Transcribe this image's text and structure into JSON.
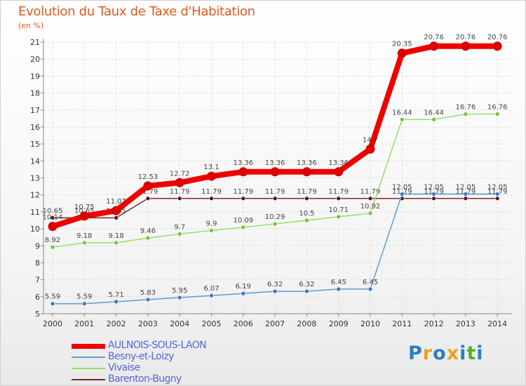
{
  "title": "Evolution du Taux de Taxe d'Habitation",
  "unit": "(en %)",
  "logo": {
    "letters": [
      "P",
      "r",
      "o",
      "x",
      "i",
      "t",
      "i"
    ],
    "colors": [
      "#2a7fc2",
      "#e8a21b",
      "#2a7fc2",
      "#e8a21b",
      "#2a7fc2",
      "#5aae2a",
      "#2a7fc2"
    ]
  },
  "chart_data": {
    "type": "line",
    "x": [
      "2000",
      "2001",
      "2002",
      "2003",
      "2004",
      "2005",
      "2006",
      "2007",
      "2008",
      "2009",
      "2010",
      "2011",
      "2012",
      "2013",
      "2014"
    ],
    "ylim": [
      5,
      21
    ],
    "yticks": [
      "5",
      "6",
      "7",
      "8",
      "9",
      "10",
      "11",
      "12",
      "13",
      "14",
      "15",
      "16",
      "17",
      "18",
      "19",
      "20",
      "21"
    ],
    "grid": true,
    "legend_position": "bottom-left",
    "series": [
      {
        "name": "Barenton-Bugny",
        "color": "#7a2a2a",
        "point": "#5a1a1a",
        "values": [
          10.65,
          10.65,
          10.65,
          11.79,
          11.79,
          11.79,
          11.79,
          11.79,
          11.79,
          11.79,
          11.79,
          11.79,
          11.79,
          11.79,
          11.79
        ],
        "labels": [
          "10.65",
          "10.65",
          "10.65",
          "11.79",
          "11.79",
          "11.79",
          "11.79",
          "11.79",
          "11.79",
          "11.79",
          "11.79",
          "11.79",
          "11.79",
          "11.79",
          "11.79"
        ]
      },
      {
        "name": "Besny-et-Loizy",
        "color": "#5b9bd5",
        "point": "#3a7dbf",
        "values": [
          5.59,
          5.59,
          5.71,
          5.83,
          5.95,
          6.07,
          6.19,
          6.32,
          6.32,
          6.45,
          6.45,
          12.05,
          12.05,
          12.05,
          12.05
        ],
        "labels": [
          "5.59",
          "5.59",
          "5.71",
          "5.83",
          "5.95",
          "6.07",
          "6.19",
          "6.32",
          "6.32",
          "6.45",
          "6.45",
          "12.05",
          "12.05",
          "12.05",
          "12.05"
        ]
      },
      {
        "name": "Vivaise",
        "color": "#99dd66",
        "point": "#7cc142",
        "values": [
          8.92,
          9.18,
          9.18,
          9.46,
          9.7,
          9.9,
          10.09,
          10.29,
          10.5,
          10.71,
          10.92,
          16.44,
          16.44,
          16.76,
          16.76
        ],
        "labels": [
          "8.92",
          "9.18",
          "9.18",
          "9.46",
          "9.7",
          "9.9",
          "10.09",
          "10.29",
          "10.5",
          "10.71",
          "10.92",
          "16.44",
          "16.44",
          "16.76",
          "16.76"
        ]
      },
      {
        "name": "AULNOIS-SOUS-LAON",
        "color": "#ee0000",
        "point": "#dd0000",
        "values": [
          10.14,
          10.75,
          11.07,
          12.53,
          12.72,
          13.1,
          13.36,
          13.36,
          13.36,
          13.36,
          14.7,
          20.35,
          20.76,
          20.76,
          20.76
        ],
        "labels": [
          "10.14",
          "10.75",
          "11.07",
          "12.53",
          "12.72",
          "13.1",
          "13.36",
          "13.36",
          "13.36",
          "13.36",
          "14.7",
          "20.35",
          "20.76",
          "20.76",
          "20.76"
        ]
      }
    ]
  },
  "legend": [
    {
      "name": "AULNOIS-SOUS-LAON",
      "color": "#ee0000",
      "text_color": "#5566dd"
    },
    {
      "name": "Besny-et-Loizy",
      "color": "#5b9bd5",
      "text_color": "#5566dd"
    },
    {
      "name": "Vivaise",
      "color": "#99dd66",
      "text_color": "#5566dd"
    },
    {
      "name": "Barenton-Bugny",
      "color": "#7a2a2a",
      "text_color": "#5566dd"
    }
  ]
}
